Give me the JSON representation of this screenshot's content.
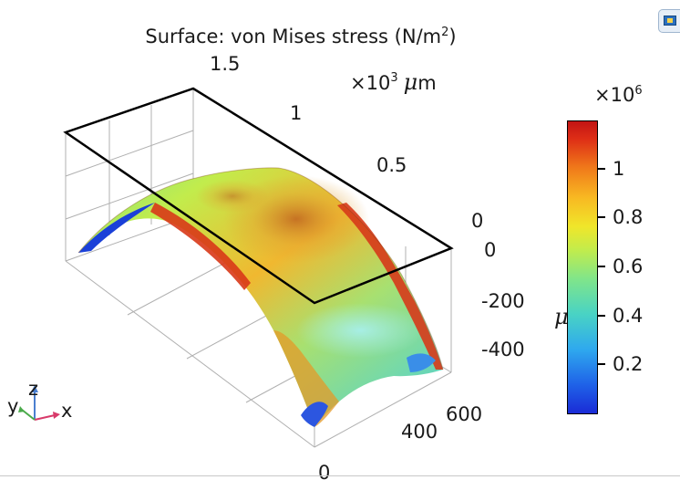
{
  "chart_data": {
    "type": "surface",
    "title": "Surface: von Mises stress (N/m²)",
    "title_pre": "Surface: von Mises stress (N/m",
    "title_sup": "2",
    "title_post": ")",
    "axes": {
      "y": {
        "ticks": [
          "1.5",
          "1",
          "0.5",
          "0"
        ],
        "multiplier_prefix": "×10",
        "multiplier_exp": "3",
        "unit_symbol": "μ",
        "unit_rest": "m"
      },
      "z": {
        "ticks": [
          "0",
          "-200",
          "-400"
        ]
      },
      "x": {
        "ticks": [
          "600",
          "400",
          "0"
        ]
      }
    },
    "colorbar": {
      "multiplier_prefix": "×10",
      "multiplier_exp": "6",
      "ticks": [
        "1",
        "0.8",
        "0.6",
        "0.4",
        "0.2"
      ],
      "tick_values": [
        1.0,
        0.8,
        0.6,
        0.4,
        0.2
      ],
      "range": [
        0.0,
        1.2
      ],
      "unit_label": "μ",
      "colormap": "rainbow",
      "colors": [
        "#1a2bd6",
        "#2fa9ee",
        "#80e58a",
        "#f0e62a",
        "#f07a1a",
        "#c21414"
      ]
    },
    "grid": true
  },
  "triad": {
    "y": "y",
    "z": "z",
    "x": "x"
  }
}
